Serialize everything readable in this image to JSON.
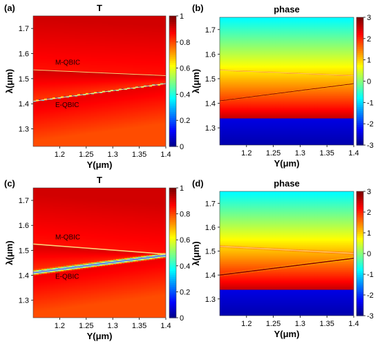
{
  "chart_data": [
    {
      "type": "heatmap",
      "panel_label": "(a)",
      "title": "T",
      "xlabel": "Y(μm)",
      "ylabel": "λ(μm)",
      "xlim": [
        1.15,
        1.4
      ],
      "ylim": [
        1.23,
        1.75
      ],
      "xticks": [
        "1.2",
        "1.25",
        "1.3",
        "1.35",
        "1.4"
      ],
      "yticks": [
        "1.3",
        "1.4",
        "1.5",
        "1.6",
        "1.7"
      ],
      "colorbar": {
        "min": 0,
        "max": 1,
        "ticks": [
          "0",
          "0.2",
          "0.4",
          "0.6",
          "0.8",
          "1"
        ]
      },
      "field": "T",
      "resonance_width": 0.0015,
      "modes": [
        {
          "label": "M-QBIC",
          "y0": 1.535,
          "y1": 1.512
        },
        {
          "label": "E-QBIC",
          "y0": 1.41,
          "y1": 1.48
        }
      ],
      "annotations": [
        "M-QBIC",
        "E-QBIC"
      ]
    },
    {
      "type": "heatmap",
      "panel_label": "(b)",
      "title": "phase",
      "xlabel": "Y(μm)",
      "ylabel": "λ(μm)",
      "xlim": [
        1.15,
        1.4
      ],
      "ylim": [
        1.23,
        1.75
      ],
      "xticks": [
        "1.2",
        "1.25",
        "1.3",
        "1.35",
        "1.4"
      ],
      "yticks": [
        "1.3",
        "1.4",
        "1.5",
        "1.6",
        "1.7"
      ],
      "colorbar": {
        "min": -3,
        "max": 3,
        "ticks": [
          "-3",
          "-2",
          "-1",
          "0",
          "1",
          "2",
          "3"
        ]
      },
      "field": "phase",
      "resonance_width": 0.0015,
      "modes": [
        {
          "label": "M-QBIC",
          "y0": 1.535,
          "y1": 1.512
        },
        {
          "label": "E-QBIC",
          "y0": 1.41,
          "y1": 1.48
        }
      ],
      "annotations": []
    },
    {
      "type": "heatmap",
      "panel_label": "(c)",
      "title": "T",
      "xlabel": "Y(μm)",
      "ylabel": "λ(μm)",
      "xlim": [
        1.15,
        1.4
      ],
      "ylim": [
        1.23,
        1.75
      ],
      "xticks": [
        "1.2",
        "1.25",
        "1.3",
        "1.35",
        "1.4"
      ],
      "yticks": [
        "1.3",
        "1.4",
        "1.5",
        "1.6",
        "1.7"
      ],
      "colorbar": {
        "min": 0,
        "max": 1,
        "ticks": [
          "0",
          "0.2",
          "0.4",
          "0.6",
          "0.8",
          "1"
        ]
      },
      "field": "T",
      "resonance_width": 0.006,
      "modes": [
        {
          "label": "M-QBIC",
          "y0": 1.525,
          "y1": 1.485
        },
        {
          "label": "E-QBIC",
          "y0": 1.41,
          "y1": 1.48
        }
      ],
      "annotations": [
        "M-QBIC",
        "E-QBIC"
      ]
    },
    {
      "type": "heatmap",
      "panel_label": "(d)",
      "title": "phase",
      "xlabel": "Y(μm)",
      "ylabel": "λ(μm)",
      "xlim": [
        1.15,
        1.4
      ],
      "ylim": [
        1.23,
        1.75
      ],
      "xticks": [
        "1.2",
        "1.25",
        "1.3",
        "1.35",
        "1.4"
      ],
      "yticks": [
        "1.3",
        "1.4",
        "1.5",
        "1.6",
        "1.7"
      ],
      "colorbar": {
        "min": -3,
        "max": 3,
        "ticks": [
          "-3",
          "-2",
          "-1",
          "0",
          "1",
          "2",
          "3"
        ]
      },
      "field": "phase",
      "resonance_width": 0.004,
      "modes": [
        {
          "label": "M-QBIC",
          "y0": 1.52,
          "y1": 1.49
        },
        {
          "label": "E-QBIC",
          "y0": 1.4,
          "y1": 1.47
        }
      ],
      "annotations": []
    }
  ]
}
